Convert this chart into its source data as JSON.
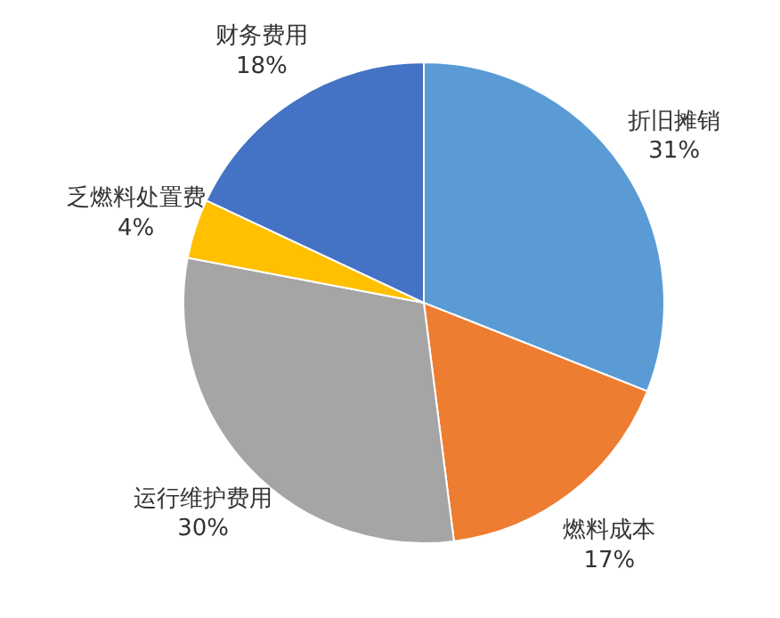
{
  "chart_data": {
    "type": "pie",
    "categories": [
      "折旧摊销",
      "燃料成本",
      "运行维护费用",
      "乏燃料处置费",
      "财务费用"
    ],
    "values": [
      31,
      17,
      30,
      4,
      18
    ],
    "colors": [
      "#5b9bd5",
      "#ed7d31",
      "#a5a5a5",
      "#ffc000",
      "#4472c4"
    ],
    "value_labels": [
      "31%",
      "17%",
      "30%",
      "4%",
      "18%"
    ],
    "legend": false
  }
}
